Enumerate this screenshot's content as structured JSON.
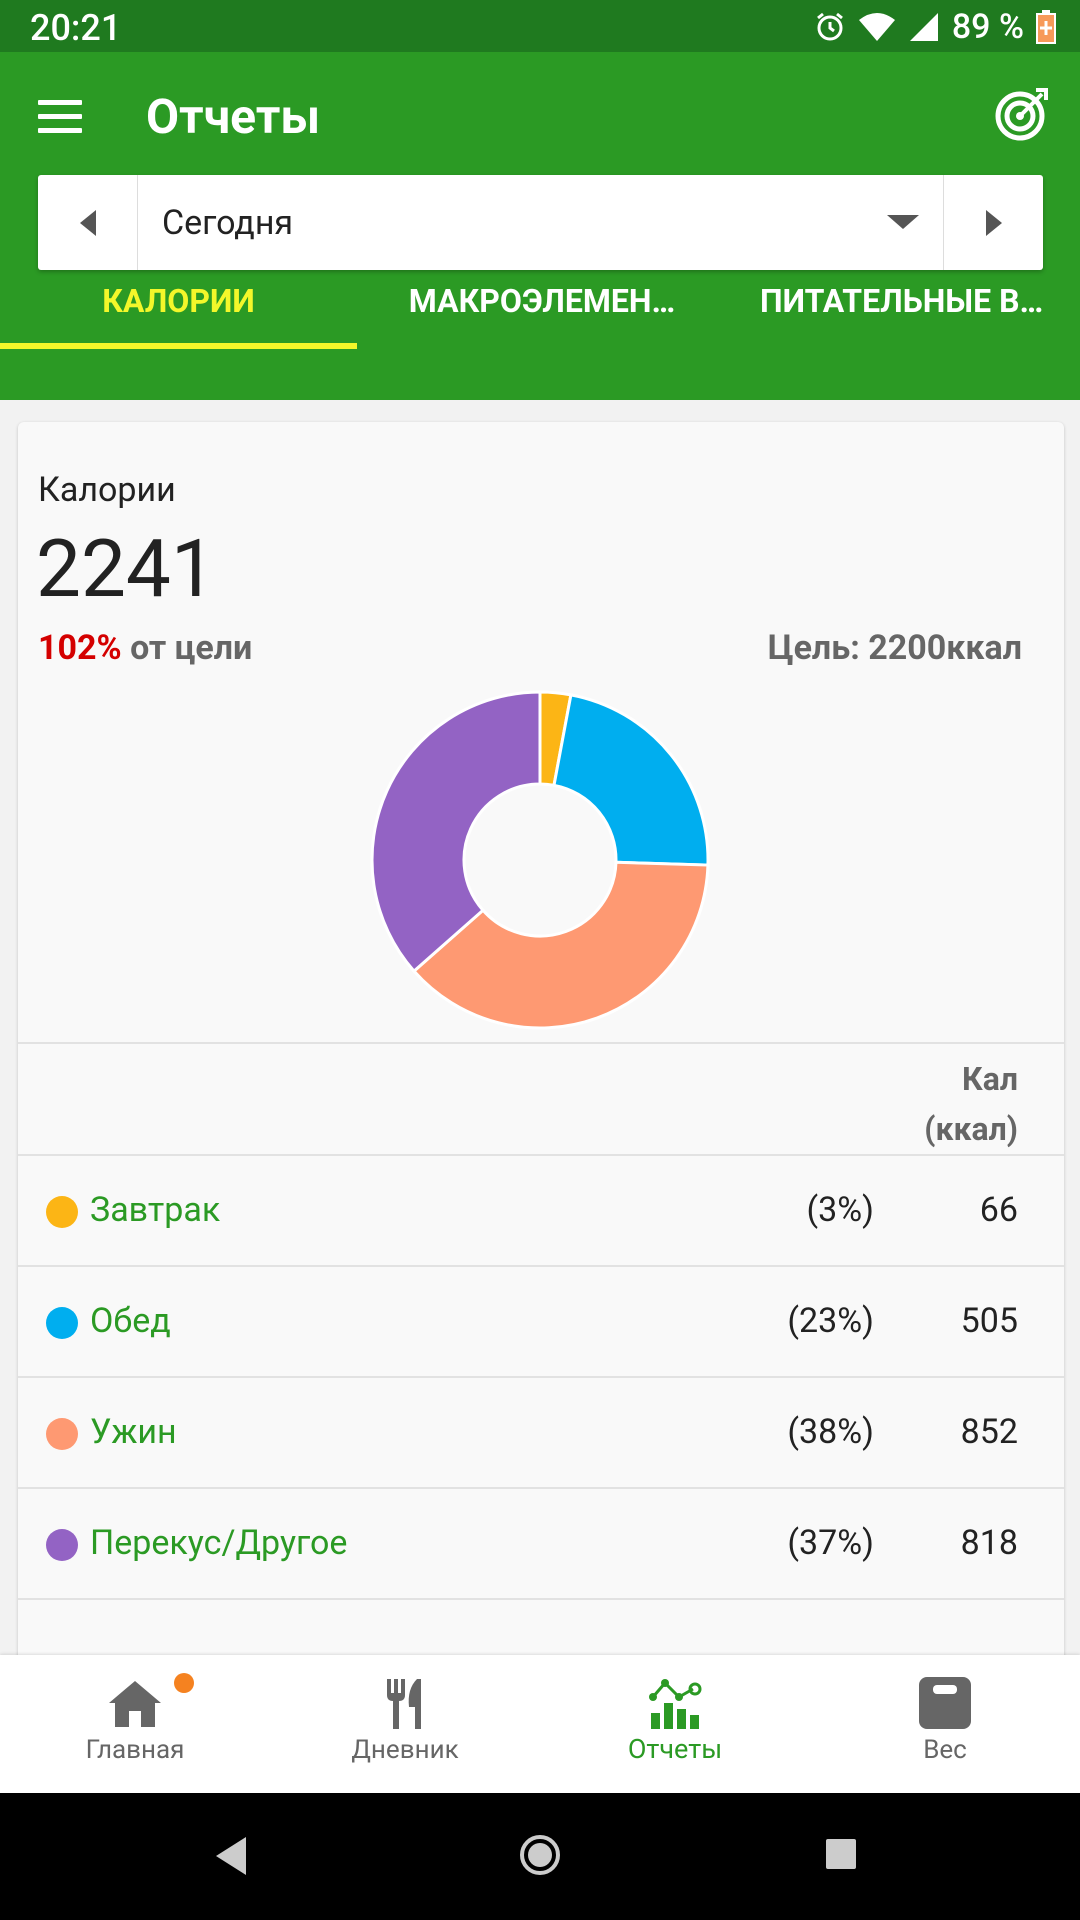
{
  "status_bar": {
    "time": "20:21",
    "battery": "89 %"
  },
  "app_bar": {
    "title": "Отчеты",
    "menu_icon": "menu-icon",
    "goal_icon": "target-icon"
  },
  "date_picker": {
    "label": "Сегодня"
  },
  "tabs": [
    {
      "label": "КАЛОРИИ",
      "active": true
    },
    {
      "label": "МАКРОЭЛЕМЕН…",
      "active": false
    },
    {
      "label": "ПИТАТЕЛЬНЫЕ В…",
      "active": false
    }
  ],
  "summary": {
    "heading": "Калории",
    "total": "2241",
    "percent": "102%",
    "percent_suffix": " от цели",
    "goal": "Цель: 2200ккал"
  },
  "chart_data": {
    "type": "pie",
    "categories": [
      "Завтрак",
      "Обед",
      "Ужин",
      "Перекус/Другое"
    ],
    "values": [
      66,
      505,
      852,
      818
    ],
    "colors": [
      "#fcb515",
      "#00aeef",
      "#fe9972",
      "#9363c4"
    ],
    "donut": true
  },
  "table": {
    "header": [
      "Кал",
      "(ккал)"
    ],
    "rows": [
      {
        "name": "Завтрак",
        "pct": "(3%)",
        "value": "66",
        "color": "#fcb515"
      },
      {
        "name": "Обед",
        "pct": "(23%)",
        "value": "505",
        "color": "#00aeef"
      },
      {
        "name": "Ужин",
        "pct": "(38%)",
        "value": "852",
        "color": "#fe9972"
      },
      {
        "name": "Перекус/Другое",
        "pct": "(37%)",
        "value": "818",
        "color": "#9363c4"
      }
    ]
  },
  "bottom_nav": [
    {
      "label": "Главная",
      "icon": "home-icon",
      "active": false,
      "badge": true
    },
    {
      "label": "Дневник",
      "icon": "fork-knife-icon",
      "active": false
    },
    {
      "label": "Отчеты",
      "icon": "reports-chart-icon",
      "active": true
    },
    {
      "label": "Вес",
      "icon": "scale-icon",
      "active": false
    }
  ],
  "colors": {
    "primary": "#2b9a24",
    "status_bar": "#1f7a1f",
    "accent": "#f3f72a",
    "over_goal": "#d40000"
  }
}
